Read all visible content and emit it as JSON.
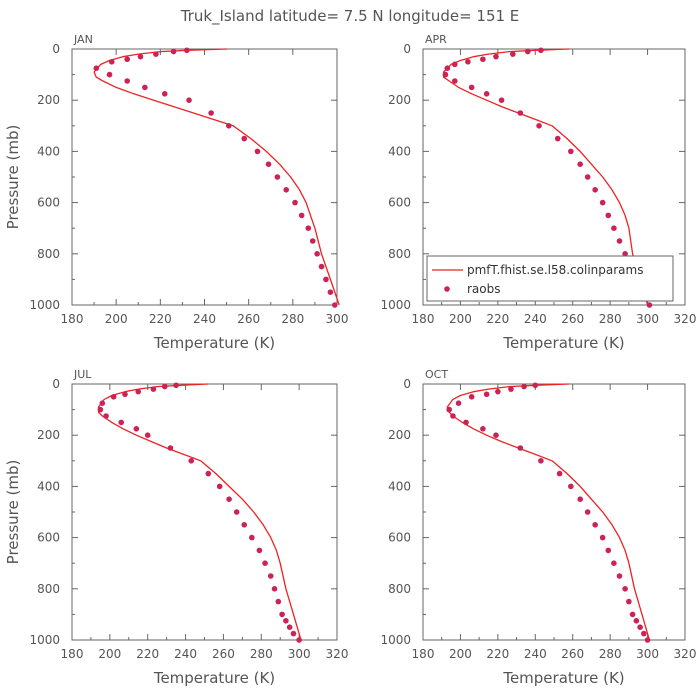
{
  "page": {
    "title": "Truk_Island  latitude= 7.5 N longitude= 151 E"
  },
  "colors": {
    "model_line": "#ee2222",
    "raobs_marker": "#cc2255",
    "axis": "#666666",
    "text": "#555555"
  },
  "chart_data": [
    {
      "type": "line",
      "panel_label": "JAN",
      "xlabel": "Temperature (K)",
      "ylabel": "Pressure (mb)",
      "xlim": [
        180,
        300
      ],
      "ylim": [
        1000,
        0
      ],
      "xticks": [
        180,
        200,
        220,
        240,
        260,
        280,
        300
      ],
      "yticks": [
        0,
        200,
        400,
        600,
        800,
        1000
      ],
      "series": [
        {
          "kind": "line",
          "x": [
            250,
            232,
            220,
            210,
            203,
            197,
            193,
            190,
            191,
            194,
            200,
            208,
            217,
            226,
            235,
            244,
            253,
            261,
            268,
            274,
            279,
            283,
            286,
            288,
            290,
            293,
            297,
            301
          ],
          "y": [
            0,
            5,
            10,
            20,
            30,
            45,
            60,
            90,
            110,
            125,
            150,
            175,
            200,
            225,
            250,
            275,
            300,
            350,
            400,
            450,
            500,
            550,
            600,
            650,
            700,
            800,
            900,
            1000
          ]
        },
        {
          "kind": "scatter",
          "x": [
            232,
            226,
            218,
            211,
            205,
            198,
            191,
            197,
            205,
            213,
            222,
            233,
            243,
            251,
            258,
            264,
            269,
            273,
            277,
            281,
            284,
            287,
            289,
            291,
            293,
            295,
            297,
            299
          ],
          "y": [
            5,
            10,
            20,
            30,
            40,
            50,
            75,
            100,
            125,
            150,
            175,
            200,
            250,
            300,
            350,
            400,
            450,
            500,
            550,
            600,
            650,
            700,
            750,
            800,
            850,
            900,
            950,
            1000
          ]
        }
      ]
    },
    {
      "type": "line",
      "panel_label": "APR",
      "xlabel": "Temperature (K)",
      "ylabel": "",
      "xlim": [
        180,
        320
      ],
      "ylim": [
        1000,
        0
      ],
      "xticks": [
        180,
        200,
        220,
        240,
        260,
        280,
        300,
        320
      ],
      "yticks": [
        0,
        200,
        400,
        600,
        800,
        1000
      ],
      "legend": {
        "placement": "bottom-right",
        "entries": [
          "pmfT.fhist.se.l58.colinparams",
          "raobs"
        ]
      },
      "series": [
        {
          "name": "pmfT.fhist.se.l58.colinparams",
          "kind": "line",
          "x": [
            258,
            240,
            226,
            215,
            207,
            200,
            195,
            191,
            191,
            194,
            199,
            206,
            214,
            222,
            231,
            240,
            249,
            257,
            264,
            270,
            276,
            281,
            285,
            288,
            290,
            292,
            296,
            300
          ],
          "y": [
            0,
            5,
            10,
            20,
            30,
            45,
            60,
            90,
            110,
            125,
            150,
            175,
            200,
            225,
            250,
            275,
            300,
            350,
            400,
            450,
            500,
            550,
            600,
            650,
            700,
            800,
            900,
            1000
          ]
        },
        {
          "name": "raobs",
          "kind": "scatter",
          "x": [
            243,
            236,
            228,
            219,
            212,
            204,
            197,
            193,
            192,
            197,
            206,
            214,
            222,
            232,
            242,
            252,
            259,
            264,
            268,
            272,
            276,
            279,
            282,
            285,
            288,
            289,
            292,
            294,
            297,
            299,
            301
          ],
          "y": [
            5,
            10,
            20,
            30,
            40,
            50,
            60,
            75,
            100,
            125,
            150,
            175,
            200,
            250,
            300,
            350,
            400,
            450,
            500,
            550,
            600,
            650,
            700,
            750,
            800,
            850,
            900,
            925,
            950,
            975,
            1000
          ]
        }
      ]
    },
    {
      "type": "line",
      "panel_label": "JUL",
      "xlabel": "Temperature (K)",
      "ylabel": "Pressure (mb)",
      "xlim": [
        180,
        320
      ],
      "ylim": [
        1000,
        0
      ],
      "xticks": [
        180,
        200,
        220,
        240,
        260,
        280,
        300,
        320
      ],
      "yticks": [
        0,
        200,
        400,
        600,
        800,
        1000
      ],
      "series": [
        {
          "kind": "line",
          "x": [
            252,
            237,
            225,
            215,
            208,
            201,
            197,
            194,
            194,
            196,
            201,
            207,
            214,
            222,
            230,
            239,
            248,
            256,
            263,
            270,
            276,
            281,
            285,
            288,
            290,
            293,
            297,
            301
          ],
          "y": [
            0,
            5,
            10,
            20,
            30,
            45,
            60,
            90,
            110,
            125,
            150,
            175,
            200,
            225,
            250,
            275,
            300,
            350,
            400,
            450,
            500,
            550,
            600,
            650,
            700,
            800,
            900,
            1000
          ]
        },
        {
          "kind": "scatter",
          "x": [
            235,
            229,
            223,
            215,
            208,
            202,
            196,
            195,
            198,
            206,
            214,
            220,
            232,
            243,
            252,
            258,
            263,
            267,
            271,
            275,
            279,
            282,
            285,
            287,
            289,
            291,
            293,
            295,
            297,
            300
          ],
          "y": [
            5,
            10,
            20,
            30,
            40,
            50,
            75,
            100,
            125,
            150,
            175,
            200,
            250,
            300,
            350,
            400,
            450,
            500,
            550,
            600,
            650,
            700,
            750,
            800,
            850,
            900,
            925,
            950,
            975,
            1000
          ]
        }
      ]
    },
    {
      "type": "line",
      "panel_label": "OCT",
      "xlabel": "Temperature (K)",
      "ylabel": "",
      "xlim": [
        180,
        320
      ],
      "ylim": [
        1000,
        0
      ],
      "xticks": [
        180,
        200,
        220,
        240,
        260,
        280,
        300,
        320
      ],
      "yticks": [
        0,
        200,
        400,
        600,
        800,
        1000
      ],
      "series": [
        {
          "kind": "line",
          "x": [
            258,
            240,
            226,
            215,
            207,
            200,
            196,
            193,
            194,
            196,
            201,
            207,
            214,
            222,
            231,
            240,
            249,
            257,
            264,
            270,
            276,
            281,
            285,
            288,
            290,
            293,
            297,
            301
          ],
          "y": [
            0,
            5,
            10,
            20,
            30,
            45,
            60,
            90,
            110,
            125,
            150,
            175,
            200,
            225,
            250,
            275,
            300,
            350,
            400,
            450,
            500,
            550,
            600,
            650,
            700,
            800,
            900,
            1000
          ]
        },
        {
          "kind": "scatter",
          "x": [
            240,
            234,
            227,
            220,
            214,
            206,
            199,
            194,
            196,
            203,
            212,
            219,
            232,
            243,
            253,
            259,
            264,
            268,
            272,
            276,
            279,
            282,
            285,
            288,
            290,
            292,
            294,
            296,
            298,
            300
          ],
          "y": [
            5,
            10,
            20,
            30,
            40,
            50,
            75,
            100,
            125,
            150,
            175,
            200,
            250,
            300,
            350,
            400,
            450,
            500,
            550,
            600,
            650,
            700,
            750,
            800,
            850,
            900,
            925,
            950,
            975,
            1000
          ]
        }
      ]
    }
  ]
}
